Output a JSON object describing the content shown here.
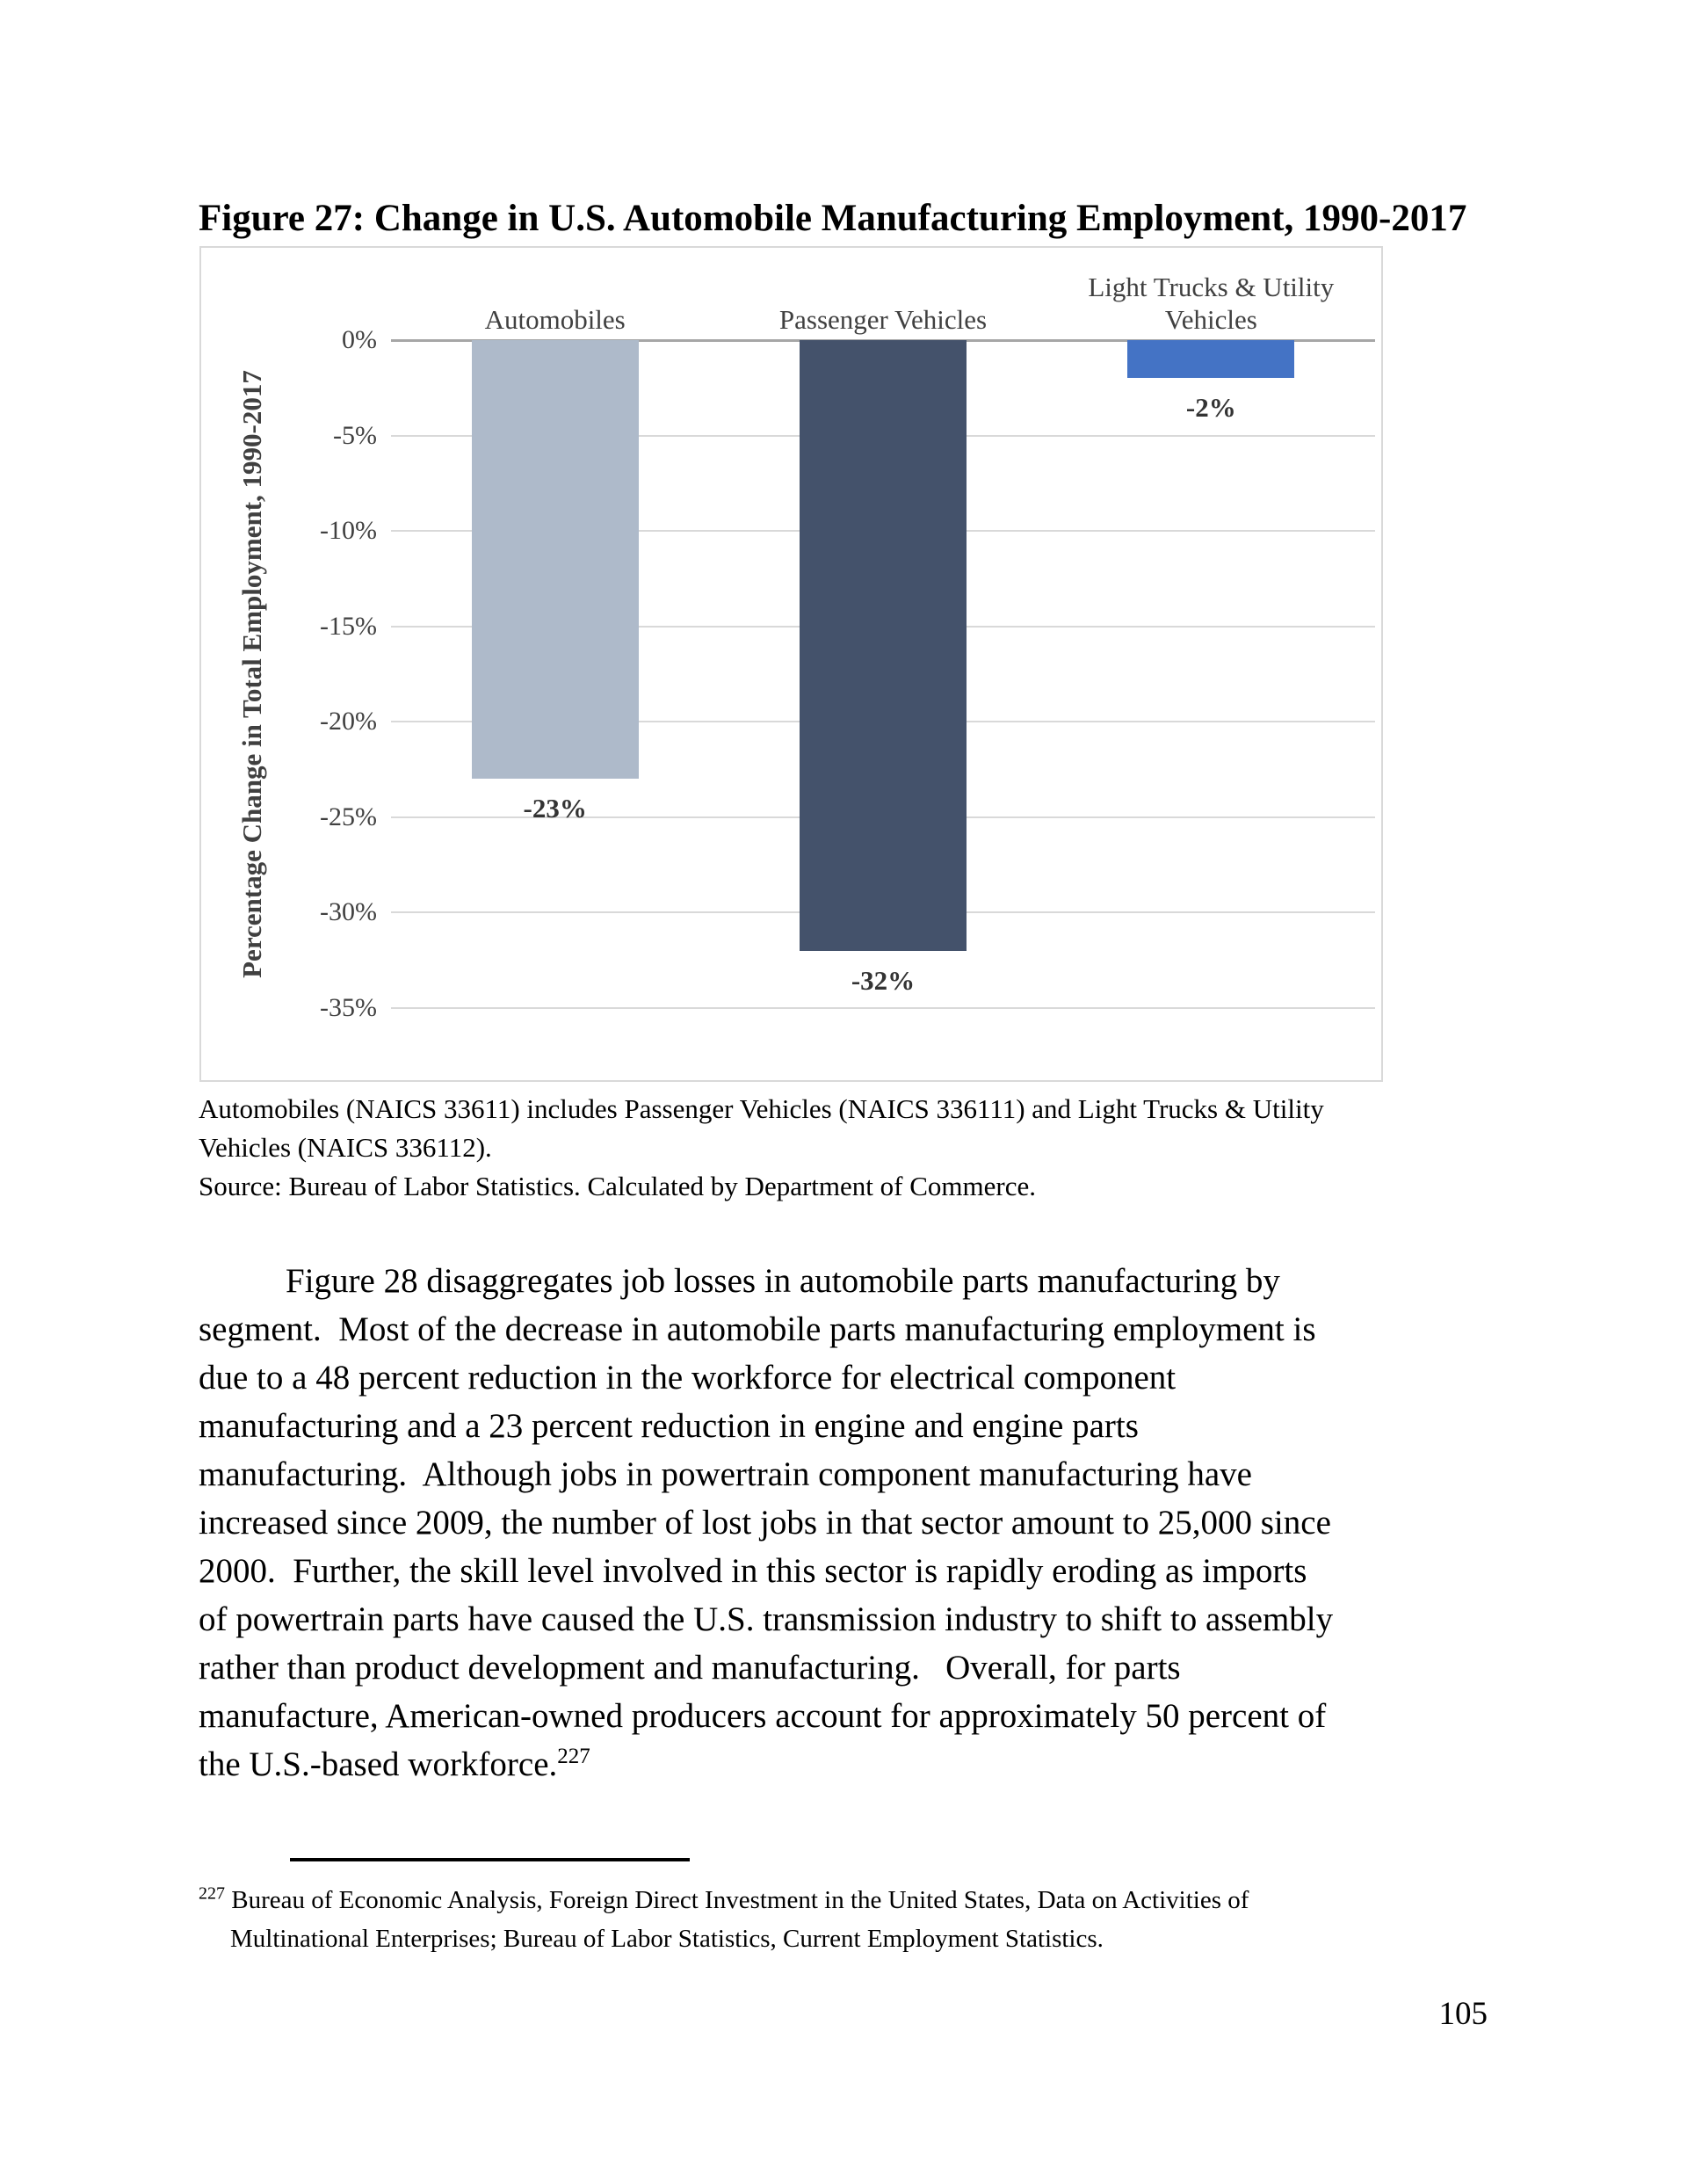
{
  "page": {
    "number": "105"
  },
  "figure": {
    "title": "Figure 27: Change in U.S. Automobile Manufacturing Employment, 1990-2017",
    "note_lines": [
      "Automobiles (NAICS 33611) includes Passenger Vehicles (NAICS 336111) and Light Trucks & Utility",
      "Vehicles (NAICS 336112).",
      "Source: Bureau of Labor Statistics. Calculated by Department of Commerce."
    ]
  },
  "chart_data": {
    "type": "bar",
    "title": "",
    "categories": [
      "Automobiles",
      "Passenger Vehicles",
      "Light Trucks & Utility Vehicles"
    ],
    "values": [
      -23,
      -32,
      -2
    ],
    "data_labels": [
      "-23%",
      "-32%",
      "-2%"
    ],
    "bar_colors": [
      "#aebaca",
      "#44526b",
      "#4473c5"
    ],
    "xlabel": "",
    "ylabel": "Percentage Change in Total Employment, 1990-2017",
    "ylim": [
      -35,
      0
    ],
    "yticks": [
      "0%",
      "-5%",
      "-10%",
      "-15%",
      "-20%",
      "-25%",
      "-30%",
      "-35%"
    ],
    "ytick_values": [
      0,
      -5,
      -10,
      -15,
      -20,
      -25,
      -30,
      -35
    ],
    "grid": true,
    "legend": false,
    "gridline_color": "#d9d9d9",
    "zero_line_color": "#a6a6a6",
    "label_color": "#404040"
  },
  "body": {
    "lines": [
      "Figure 28 disaggregates job losses in automobile parts manufacturing by",
      "segment.  Most of the decrease in automobile parts manufacturing employment is",
      "due to a 48 percent reduction in the workforce for electrical component",
      "manufacturing and a 23 percent reduction in engine and engine parts",
      "manufacturing.  Although jobs in powertrain component manufacturing have",
      "increased since 2009, the number of lost jobs in that sector amount to 25,000 since",
      "2000.  Further, the skill level involved in this sector is rapidly eroding as imports",
      "of powertrain parts have caused the U.S. transmission industry to shift to assembly",
      "rather than product development and manufacturing.   Overall, for parts",
      "manufacture, American-owned producers account for approximately 50 percent of"
    ],
    "last_line": "the U.S.-based workforce.",
    "footnote_ref": "227"
  },
  "footnote": {
    "marker": "227",
    "line1": "Bureau of Economic Analysis, Foreign Direct Investment in the United States, Data on Activities of",
    "line2": "Multinational Enterprises; Bureau of Labor Statistics, Current Employment Statistics."
  }
}
